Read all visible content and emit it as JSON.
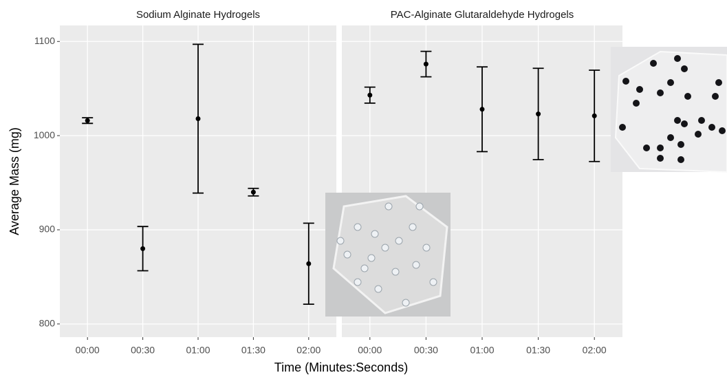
{
  "chart_data": [
    {
      "type": "errorbar",
      "title": "Sodium Alginate Hydrogels",
      "ylabel": "Average Mass (mg)",
      "xlabel": "Time (Minutes:Seconds)",
      "categories": [
        "00:00",
        "00:30",
        "01:00",
        "01:30",
        "02:00"
      ],
      "values": [
        1016,
        880,
        1018,
        940,
        864
      ],
      "errors": [
        3,
        23.5,
        79,
        4,
        43
      ],
      "color": "#000000",
      "ylim": [
        786,
        1117
      ],
      "yticks": [
        800,
        900,
        1000,
        1100
      ],
      "grid": true
    },
    {
      "type": "errorbar",
      "title": "PAC-Alginate Glutaraldehyde Hydrogels",
      "categories": [
        "00:00",
        "00:30",
        "01:00",
        "01:30",
        "02:00"
      ],
      "values": [
        1043,
        1076,
        1028,
        1023,
        1021
      ],
      "errors": [
        8.5,
        13.5,
        45,
        48.5,
        48.5
      ],
      "color": "#000000",
      "ylim": [
        786,
        1117
      ],
      "yticks": [
        800,
        900,
        1000,
        1100
      ],
      "grid": true
    }
  ]
}
